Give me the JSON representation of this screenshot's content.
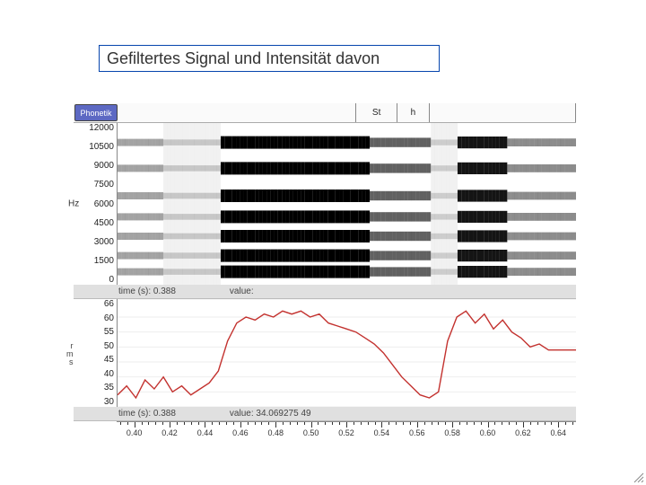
{
  "title": "Gefiltertes Signal und Intensität davon",
  "tier": {
    "name": "Phonetik",
    "segments": [
      {
        "label": "",
        "start_pct": 0,
        "end_pct": 52
      },
      {
        "label": "St",
        "start_pct": 52,
        "end_pct": 61
      },
      {
        "label": "h",
        "start_pct": 61,
        "end_pct": 68
      },
      {
        "label": "",
        "start_pct": 68,
        "end_pct": 100
      }
    ]
  },
  "spectrogram": {
    "y_ticks": [
      "12000",
      "10500",
      "9000",
      "7500",
      "6000",
      "4500",
      "3000",
      "1500",
      "0"
    ],
    "y_unit": "Hz",
    "bg": "#ffffff",
    "ink": "#000000",
    "faint": "#c8c8c8",
    "columns": 120
  },
  "info_strip1": {
    "time_label": "time (s):",
    "time_value": "0.388",
    "value_label": "value:",
    "value_text": ""
  },
  "intensity": {
    "y_ticks": [
      "66",
      "60",
      "55",
      "50",
      "45",
      "40",
      "35",
      "30"
    ],
    "ymin": 30,
    "ymax": 66,
    "side_label_lines": [
      "r",
      "m",
      "s"
    ],
    "line_color": "#c3322f",
    "points": [
      [
        0.0,
        34
      ],
      [
        0.02,
        37
      ],
      [
        0.04,
        33
      ],
      [
        0.06,
        39
      ],
      [
        0.08,
        36
      ],
      [
        0.1,
        40
      ],
      [
        0.12,
        35
      ],
      [
        0.14,
        37
      ],
      [
        0.16,
        34
      ],
      [
        0.18,
        36
      ],
      [
        0.2,
        38
      ],
      [
        0.22,
        42
      ],
      [
        0.24,
        52
      ],
      [
        0.26,
        58
      ],
      [
        0.28,
        60
      ],
      [
        0.3,
        59
      ],
      [
        0.32,
        61
      ],
      [
        0.34,
        60
      ],
      [
        0.36,
        62
      ],
      [
        0.38,
        61
      ],
      [
        0.4,
        62
      ],
      [
        0.42,
        60
      ],
      [
        0.44,
        61
      ],
      [
        0.46,
        58
      ],
      [
        0.48,
        57
      ],
      [
        0.5,
        56
      ],
      [
        0.52,
        55
      ],
      [
        0.54,
        53
      ],
      [
        0.56,
        51
      ],
      [
        0.58,
        48
      ],
      [
        0.6,
        44
      ],
      [
        0.62,
        40
      ],
      [
        0.64,
        37
      ],
      [
        0.66,
        34
      ],
      [
        0.68,
        33
      ],
      [
        0.7,
        35
      ],
      [
        0.72,
        52
      ],
      [
        0.74,
        60
      ],
      [
        0.76,
        62
      ],
      [
        0.78,
        58
      ],
      [
        0.8,
        61
      ],
      [
        0.82,
        56
      ],
      [
        0.84,
        59
      ],
      [
        0.86,
        55
      ],
      [
        0.88,
        53
      ],
      [
        0.9,
        50
      ],
      [
        0.92,
        51
      ],
      [
        0.94,
        49
      ],
      [
        0.96,
        49
      ],
      [
        0.98,
        49
      ],
      [
        1.0,
        49
      ]
    ]
  },
  "info_strip2": {
    "time_label": "time (s):",
    "time_value": "0.388",
    "value_label": "value:",
    "value_text": "34.069275  49"
  },
  "time_axis": {
    "start": 0.38,
    "end": 0.66,
    "major_step": 0.02,
    "labels": [
      "0.40",
      "0.42",
      "0.44",
      "0.46",
      "0.48",
      "0.50",
      "0.52",
      "0.54",
      "0.56",
      "0.58",
      "0.60",
      "0.62",
      "0.64"
    ]
  },
  "colors": {
    "title_border": "#0645ad",
    "tier_bg": "#5d69c3",
    "strip_bg": "#e0e0e0"
  }
}
